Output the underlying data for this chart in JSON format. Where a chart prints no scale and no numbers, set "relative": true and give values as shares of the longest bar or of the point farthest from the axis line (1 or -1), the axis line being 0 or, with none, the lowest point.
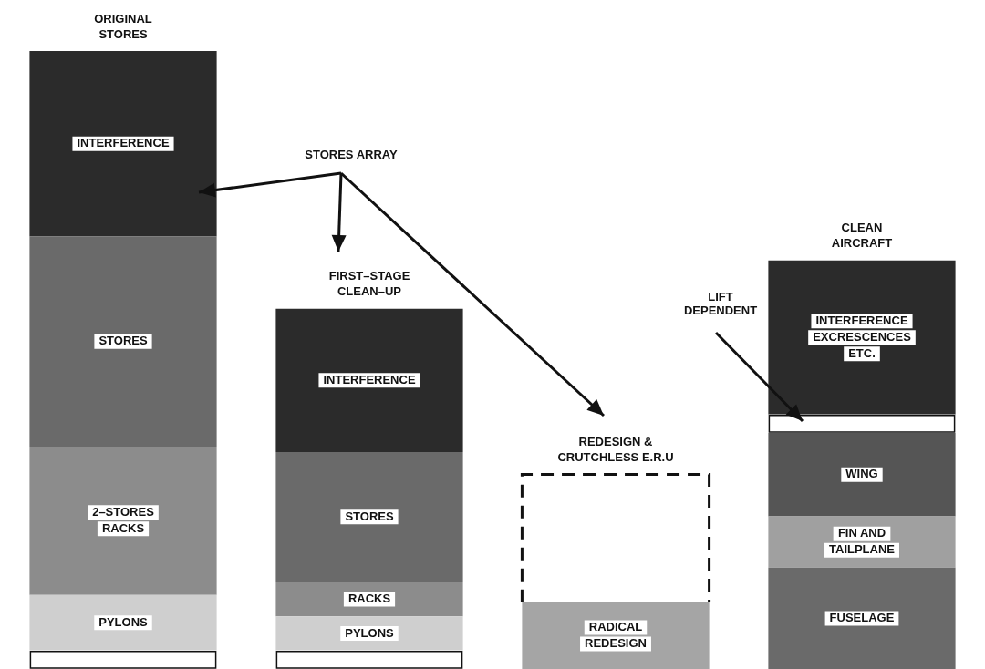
{
  "chart_data": {
    "type": "bar",
    "stacked": true,
    "relative": true,
    "legend": false,
    "categories": [
      "ORIGINAL\nSTORES",
      "FIRST–STAGE\nCLEAN–UP",
      "REDESIGN &\nCRUTCHLESS E.R.U",
      "CLEAN\nAIRCRAFT"
    ],
    "series": [
      {
        "color": "#ffffff",
        "values": [
          0.03,
          null,
          null,
          null
        ]
      },
      {
        "name": "PYLONS",
        "color": "#cfcfcf",
        "values": [
          0.09,
          null,
          null,
          null
        ]
      },
      {
        "name": "2–STORES\nRACKS",
        "color": "#8c8c8c",
        "values": [
          0.24,
          null,
          null,
          null
        ]
      },
      {
        "name": "STORES",
        "color": "#6a6a6a",
        "values": [
          0.34,
          null,
          null,
          null
        ]
      },
      {
        "name": "INTERFERENCE",
        "color": "#2b2b2b",
        "values": [
          0.3,
          null,
          null,
          null
        ]
      },
      {
        "color": "#ffffff",
        "values": [
          null,
          0.03,
          null,
          null
        ]
      },
      {
        "name": "PYLONS",
        "color": "#cfcfcf",
        "values": [
          null,
          0.055,
          null,
          null
        ]
      },
      {
        "name": "RACKS",
        "color": "#8c8c8c",
        "values": [
          null,
          0.056,
          null,
          null
        ]
      },
      {
        "name": "STORES",
        "color": "#6a6a6a",
        "values": [
          null,
          0.21,
          null,
          null
        ]
      },
      {
        "name": "INTERFERENCE",
        "color": "#2b2b2b",
        "values": [
          null,
          0.232,
          null,
          null
        ]
      },
      {
        "name": "RADICAL\nREDESIGN",
        "color": "#a5a5a5",
        "values": [
          null,
          null,
          0.108,
          null
        ]
      },
      {
        "color": "#ffffff",
        "line_style": "dashed",
        "values": [
          null,
          null,
          0.207,
          null
        ]
      },
      {
        "name": "FUSELAGE",
        "color": "#6a6a6a",
        "values": [
          null,
          null,
          null,
          0.164
        ]
      },
      {
        "name": "FIN AND\nTAILPLANE",
        "color": "#a0a0a0",
        "values": [
          null,
          null,
          null,
          0.083
        ]
      },
      {
        "name": "WING",
        "color": "#555555",
        "values": [
          null,
          null,
          null,
          0.135
        ]
      },
      {
        "color": "#ffffff",
        "values": [
          null,
          null,
          null,
          0.03
        ]
      },
      {
        "name": "INTERFERENCE\nEXCRESCENCES\nETC.",
        "color": "#2b2b2b",
        "values": [
          null,
          null,
          null,
          0.249
        ]
      }
    ],
    "annotations": [
      "STORES ARRAY",
      "LIFT\nDEPENDENT"
    ]
  }
}
